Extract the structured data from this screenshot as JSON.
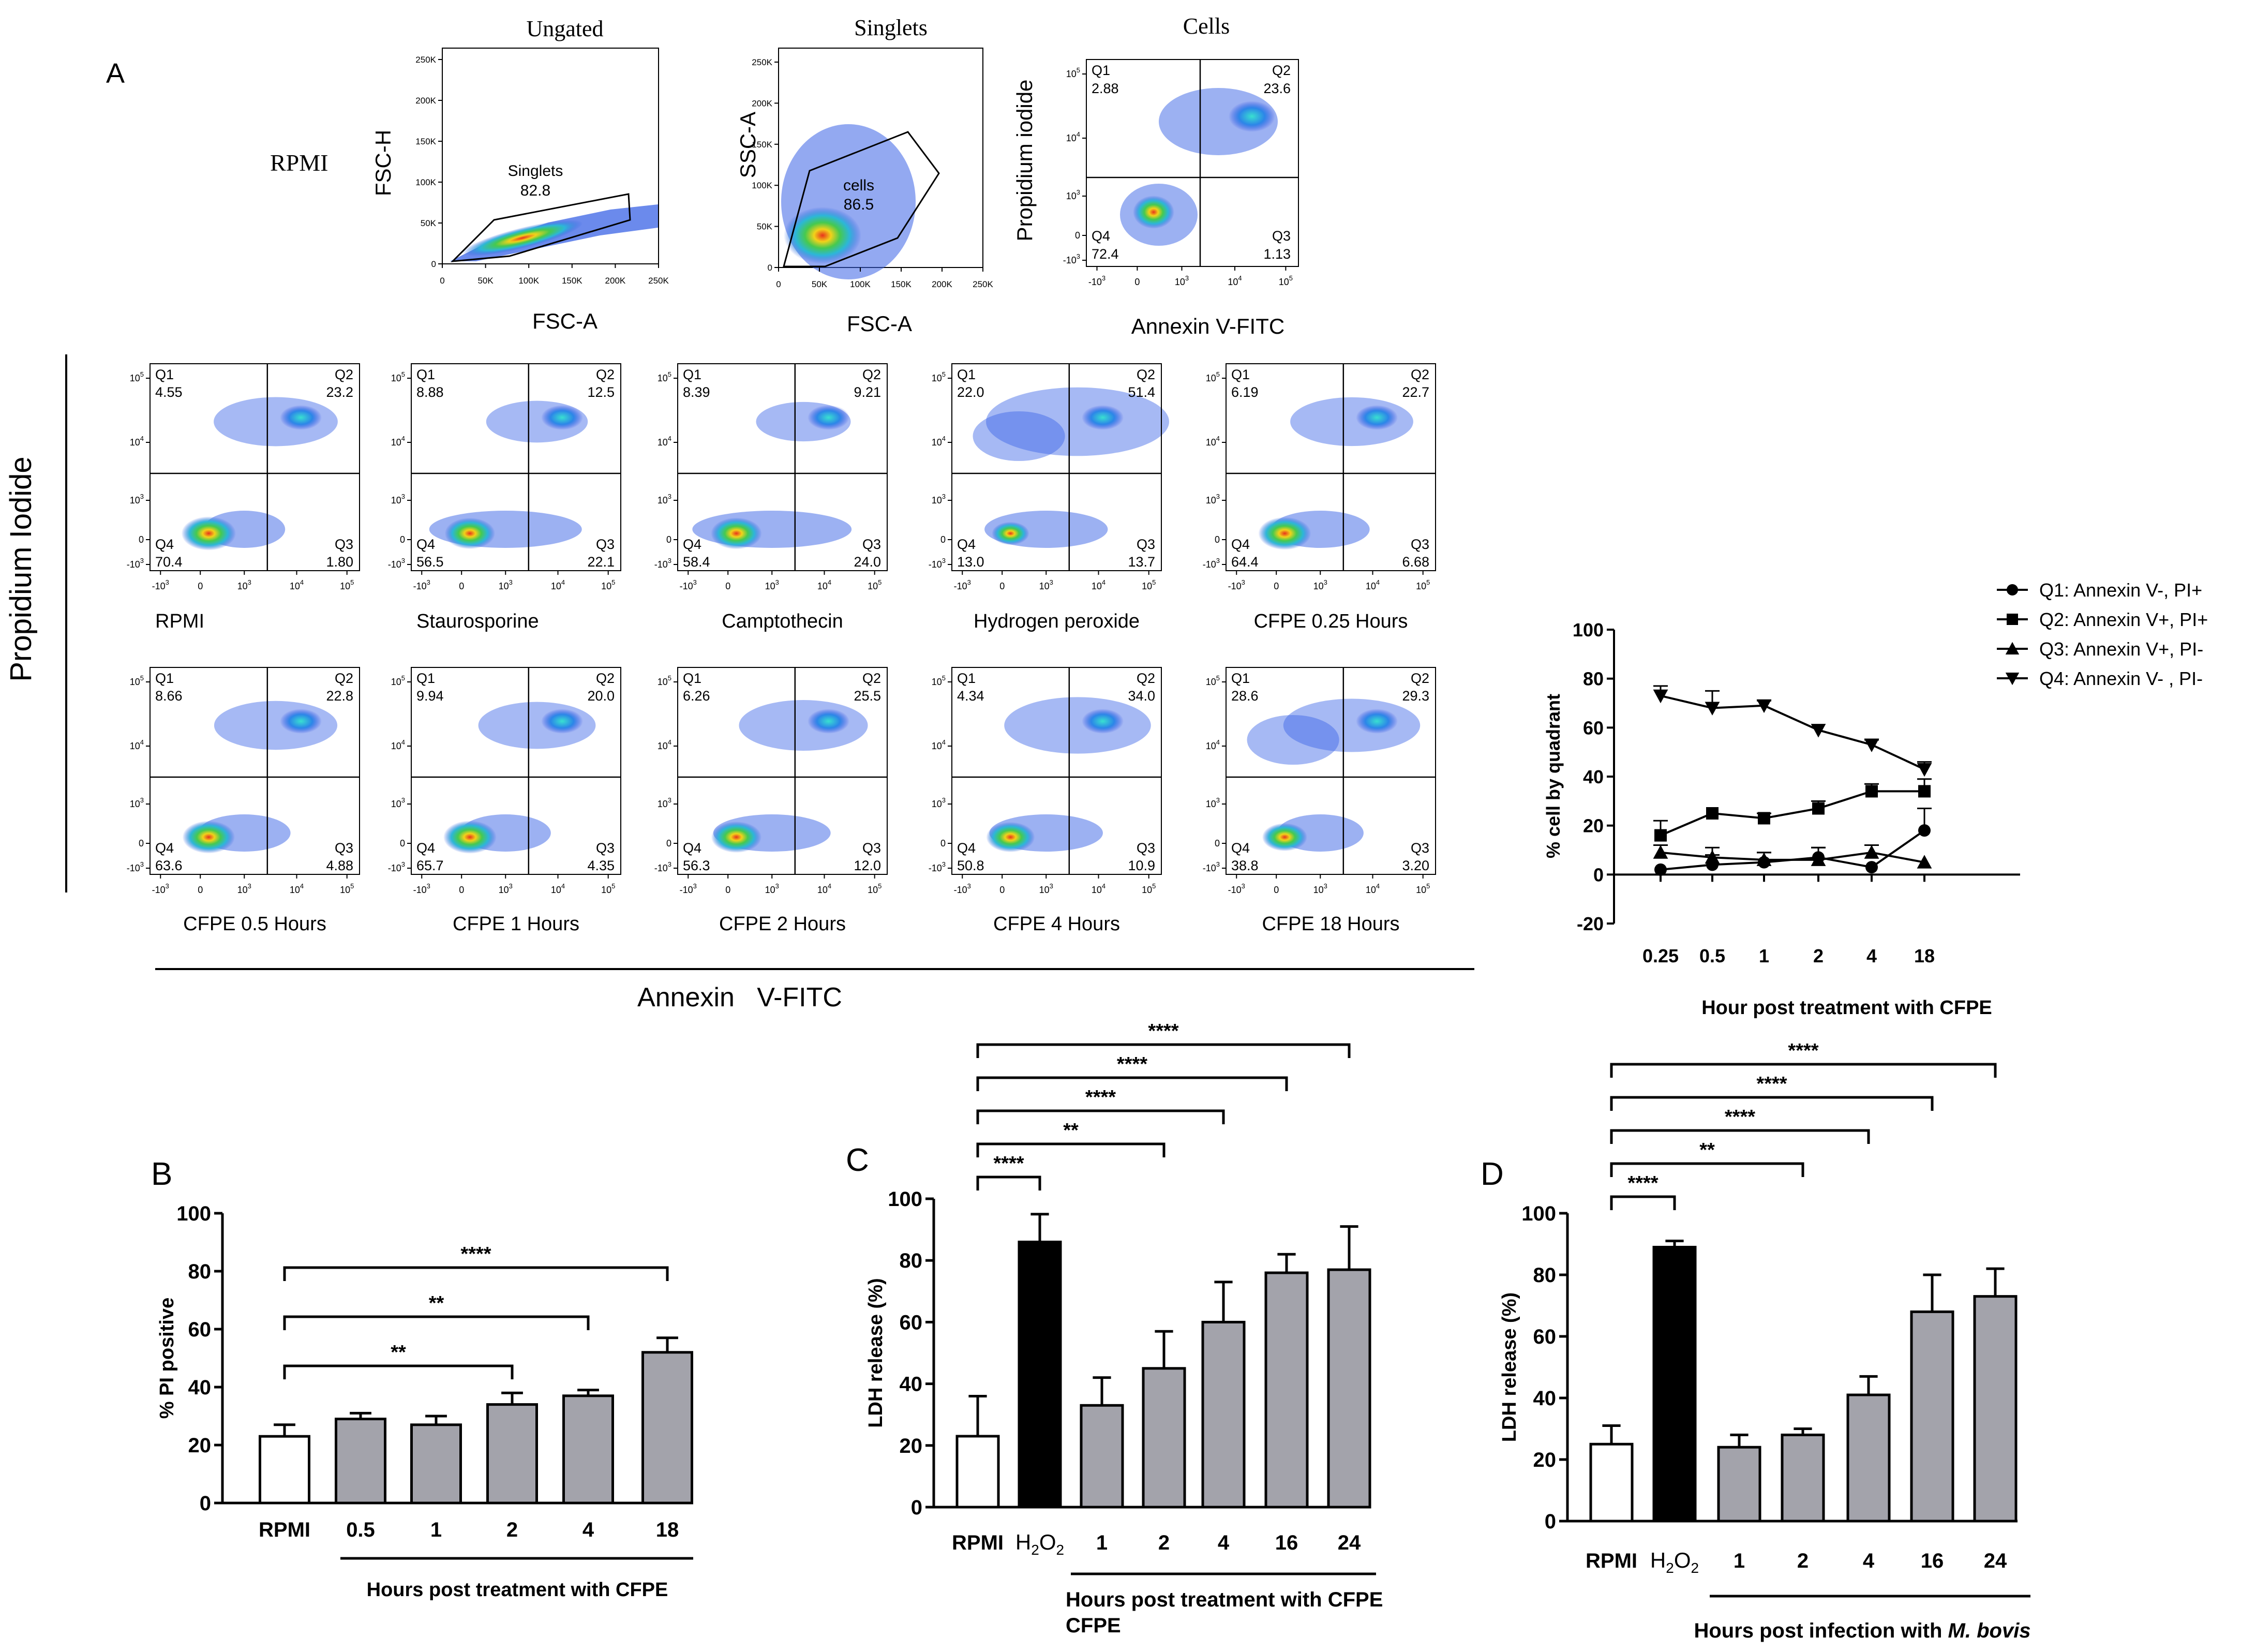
{
  "panel_labels": {
    "a": "A",
    "b": "B",
    "c": "C",
    "d": "D"
  },
  "gating": {
    "titles": [
      "Ungated",
      "Singlets",
      "Cells"
    ],
    "row_label": "RPMI",
    "ungated": {
      "xlabel": "FSC-A",
      "ylabel": "FSC-H",
      "gate_name": "Singlets",
      "gate_value": "82.8",
      "xticks": [
        "0",
        "50K",
        "100K",
        "150K",
        "200K",
        "250K"
      ],
      "yticks": [
        "0",
        "50K",
        "100K",
        "150K",
        "200K",
        "250K"
      ]
    },
    "singlets": {
      "xlabel": "FSC-A",
      "ylabel": "SSC-A",
      "gate_name": "cells",
      "gate_value": "86.5",
      "xticks": [
        "0",
        "50K",
        "100K",
        "150K",
        "200K",
        "250K"
      ],
      "yticks": [
        "0",
        "50K",
        "100K",
        "150K",
        "200K",
        "250K"
      ]
    },
    "cells": {
      "xlabel": "Annexin V-FITC",
      "ylabel": "Propidium iodide",
      "q": {
        "q1": "Q1",
        "q2": "Q2",
        "q3": "Q3",
        "q4": "Q4"
      },
      "values": {
        "q1": "2.88",
        "q2": "23.6",
        "q3": "1.13",
        "q4": "72.4"
      }
    }
  },
  "scatter_axis_ticks": {
    "x": [
      "-10",
      "0",
      "10",
      "10",
      "10"
    ],
    "x_exp": [
      "3",
      "",
      "3",
      "4",
      "5"
    ],
    "y": [
      "-10",
      "0",
      "10",
      "10",
      "10"
    ],
    "y_exp": [
      "3",
      "",
      "3",
      "4",
      "5"
    ]
  },
  "quadrant_names": {
    "q1": "Q1",
    "q2": "Q2",
    "q3": "Q3",
    "q4": "Q4"
  },
  "quadrant_plots": [
    {
      "label": "RPMI",
      "q1": "4.55",
      "q2": "23.2",
      "q3": "1.80",
      "q4": "70.4"
    },
    {
      "label": "Staurosporine",
      "q1": "8.88",
      "q2": "12.5",
      "q3": "22.1",
      "q4": "56.5"
    },
    {
      "label": "Camptothecin",
      "q1": "8.39",
      "q2": "9.21",
      "q3": "24.0",
      "q4": "58.4"
    },
    {
      "label": "Hydrogen peroxide",
      "q1": "22.0",
      "q2": "51.4",
      "q3": "13.7",
      "q4": "13.0"
    },
    {
      "label": "CFPE 0.25 Hours",
      "q1": "6.19",
      "q2": "22.7",
      "q3": "6.68",
      "q4": "64.4"
    },
    {
      "label": "CFPE 0.5 Hours",
      "q1": "8.66",
      "q2": "22.8",
      "q3": "4.88",
      "q4": "63.6"
    },
    {
      "label": "CFPE 1 Hours",
      "q1": "9.94",
      "q2": "20.0",
      "q3": "4.35",
      "q4": "65.7"
    },
    {
      "label": "CFPE 2 Hours",
      "q1": "6.26",
      "q2": "25.5",
      "q3": "12.0",
      "q4": "56.3"
    },
    {
      "label": "CFPE 4 Hours",
      "q1": "4.34",
      "q2": "34.0",
      "q3": "10.9",
      "q4": "50.8"
    },
    {
      "label": "CFPE 18 Hours",
      "q1": "28.6",
      "q2": "29.3",
      "q3": "3.20",
      "q4": "38.8"
    }
  ],
  "grid_labels": {
    "y": "Propidium Iodide",
    "x": "Annexin   V-FITC"
  },
  "chart_data": [
    {
      "id": "line",
      "type": "line",
      "categories": [
        "0.25",
        "0.5",
        "1",
        "2",
        "4",
        "18"
      ],
      "series": [
        {
          "name": "Q1: Annexin V-, PI+",
          "marker": "circle",
          "values": [
            2,
            4,
            5,
            7,
            3,
            18
          ],
          "errors": [
            0,
            4,
            4,
            4,
            0,
            9
          ]
        },
        {
          "name": "Q2: Annexin V+, PI+",
          "marker": "square",
          "values": [
            16,
            25,
            23,
            27,
            34,
            34
          ],
          "errors": [
            6,
            0,
            2,
            3,
            3,
            5
          ]
        },
        {
          "name": "Q3: Annexin V+, PI-",
          "marker": "triangle-up",
          "values": [
            9,
            7,
            6,
            6,
            9,
            5
          ],
          "errors": [
            3,
            4,
            3,
            5,
            3,
            0
          ]
        },
        {
          "name": "Q4: Annexin V- , PI-",
          "marker": "triangle-down",
          "values": [
            73,
            68,
            69,
            59,
            53,
            43
          ],
          "errors": [
            4,
            7,
            2,
            0,
            2,
            3
          ]
        }
      ],
      "ylabel": "% cell by quadrant",
      "xlabel": "Hour post treatment  with CFPE",
      "ylim": [
        -20,
        100
      ],
      "yticks": [
        "-20",
        "0",
        "20",
        "40",
        "60",
        "80",
        "100"
      ]
    },
    {
      "id": "B",
      "type": "bar",
      "categories": [
        "RPMI",
        "0.5",
        "1",
        "2",
        "4",
        "18"
      ],
      "values": [
        23,
        29,
        27,
        34,
        37,
        52
      ],
      "errors": [
        4,
        2,
        3,
        4,
        2,
        5
      ],
      "fills": [
        "white",
        "gray",
        "gray",
        "gray",
        "gray",
        "gray"
      ],
      "ylabel": "% PI positive",
      "xlabel": "Hours post treatment with CFPE",
      "ylim": [
        0,
        100
      ],
      "yticks": [
        "0",
        "20",
        "40",
        "60",
        "80",
        "100"
      ],
      "brackets": [
        {
          "from": 0,
          "to": 3,
          "label": "**"
        },
        {
          "from": 0,
          "to": 4,
          "label": "**"
        },
        {
          "from": 0,
          "to": 5,
          "label": "****"
        }
      ]
    },
    {
      "id": "C",
      "type": "bar",
      "categories": [
        "RPMI",
        "H2O2",
        "1",
        "2",
        "4",
        "16",
        "24"
      ],
      "values": [
        23,
        86,
        33,
        45,
        60,
        76,
        77
      ],
      "errors": [
        13,
        9,
        9,
        12,
        13,
        6,
        14
      ],
      "fills": [
        "white",
        "black",
        "gray",
        "gray",
        "gray",
        "gray",
        "gray"
      ],
      "ylabel": "LDH release (%)",
      "xlabel": "Hours post treatment with CFPE",
      "ylim": [
        0,
        100
      ],
      "yticks": [
        "0",
        "20",
        "40",
        "60",
        "80",
        "100"
      ],
      "brackets": [
        {
          "from": 0,
          "to": 1,
          "label": "****"
        },
        {
          "from": 0,
          "to": 3,
          "label": "**"
        },
        {
          "from": 0,
          "to": 4,
          "label": "****"
        },
        {
          "from": 0,
          "to": 5,
          "label": "****"
        },
        {
          "from": 0,
          "to": 6,
          "label": "****"
        }
      ]
    },
    {
      "id": "D",
      "type": "bar",
      "categories": [
        "RPMI",
        "H2O2",
        "1",
        "2",
        "4",
        "16",
        "24"
      ],
      "values": [
        25,
        89,
        24,
        28,
        41,
        68,
        73
      ],
      "errors": [
        6,
        2,
        4,
        2,
        6,
        12,
        9
      ],
      "fills": [
        "white",
        "black",
        "gray",
        "gray",
        "gray",
        "gray",
        "gray"
      ],
      "ylabel": "LDH release (%)",
      "xlabel": "Hours post infection with M. bovis",
      "xlabel_plain": "Hours post infection with ",
      "xlabel_italic": "M. bovis",
      "ylim": [
        0,
        100
      ],
      "yticks": [
        "0",
        "20",
        "40",
        "60",
        "80",
        "100"
      ],
      "brackets": [
        {
          "from": 0,
          "to": 1,
          "label": "****"
        },
        {
          "from": 0,
          "to": 3,
          "label": "**"
        },
        {
          "from": 0,
          "to": 4,
          "label": "****"
        },
        {
          "from": 0,
          "to": 5,
          "label": "****"
        },
        {
          "from": 0,
          "to": 6,
          "label": "****"
        }
      ]
    }
  ],
  "colors": {
    "gray_bar": "#a3a3ab",
    "black_bar": "#000000",
    "ink": "#000000"
  }
}
